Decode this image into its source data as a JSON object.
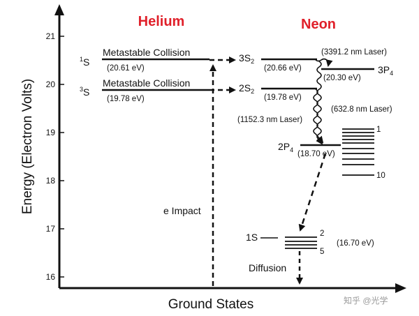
{
  "titles": {
    "helium": "Helium",
    "neon": "Neon"
  },
  "axes": {
    "ylabel": "Energy (Electron Volts)",
    "xlabel": "Ground States",
    "yticks": [
      "16",
      "17",
      "18",
      "19",
      "20",
      "21"
    ]
  },
  "helium": {
    "s1_symbol": "S",
    "s1_sup": "1",
    "s3_symbol": "S",
    "s3_sup": "3",
    "s1_caption": "Metastable Collision",
    "s1_energy": "(20.61 eV)",
    "s3_caption": "Metastable Collision",
    "s3_energy": "(19.78 eV)",
    "impact": "e Impact"
  },
  "neon": {
    "s3_label": "3S",
    "s3_sub": "2",
    "s3_energy": "(20.66 eV)",
    "s2_label": "2S",
    "s2_sub": "2",
    "s2_energy": "(19.78 eV)",
    "p3_label": "3P",
    "p3_sub": "4",
    "p3_energy": "(20.30 eV)",
    "p2_label": "2P",
    "p2_sub": "4",
    "p2_energy": "(18.70 eV)",
    "laser_3391": "(3391.2 nm Laser)",
    "laser_632": "(632.8 nm Laser)",
    "laser_1152": "(1152.3 nm Laser)",
    "p2_top_index": "1",
    "p2_bottom_index": "10",
    "s1_label": "1S",
    "s1_top_index": "2",
    "s1_bottom_index": "5",
    "s1_energy": "(16.70 eV)",
    "diffusion": "Diffusion"
  },
  "watermark": "知乎 @光学"
}
